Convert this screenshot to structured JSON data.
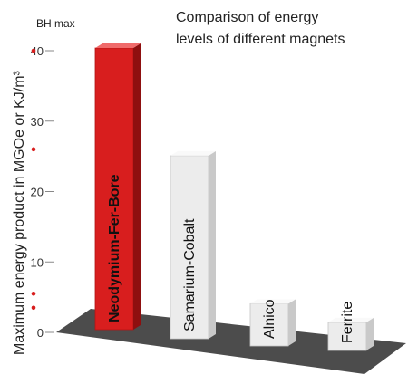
{
  "chart_data": {
    "type": "bar",
    "title_lines": [
      "Comparison of energy",
      "levels of different magnets"
    ],
    "unit_label": "BH max",
    "ylabel": "Maximum energy product in MGOe or KJ/m³",
    "xlabel": "",
    "ylim": [
      0,
      40
    ],
    "yticks": [
      "0",
      "10",
      "20",
      "30",
      "40"
    ],
    "grid": false,
    "categories": [
      "Neodymium-Fer-Bore",
      "Samarium-Cobalt",
      "Alnico",
      "Ferrite"
    ],
    "values": [
      40,
      26,
      6,
      4
    ],
    "colors": {
      "highlight": "#d81e1e",
      "highlight_side": "#8e0f0f",
      "highlight_top": "#f06b6b",
      "bar": "#ececec",
      "bar_side": "#c9c9c9",
      "bar_top": "#f9f9f9",
      "floor": "#4c4c4c",
      "axis_dot": "#d81e1e"
    },
    "axis_dots": [
      40,
      26,
      5.5,
      3.5
    ]
  }
}
